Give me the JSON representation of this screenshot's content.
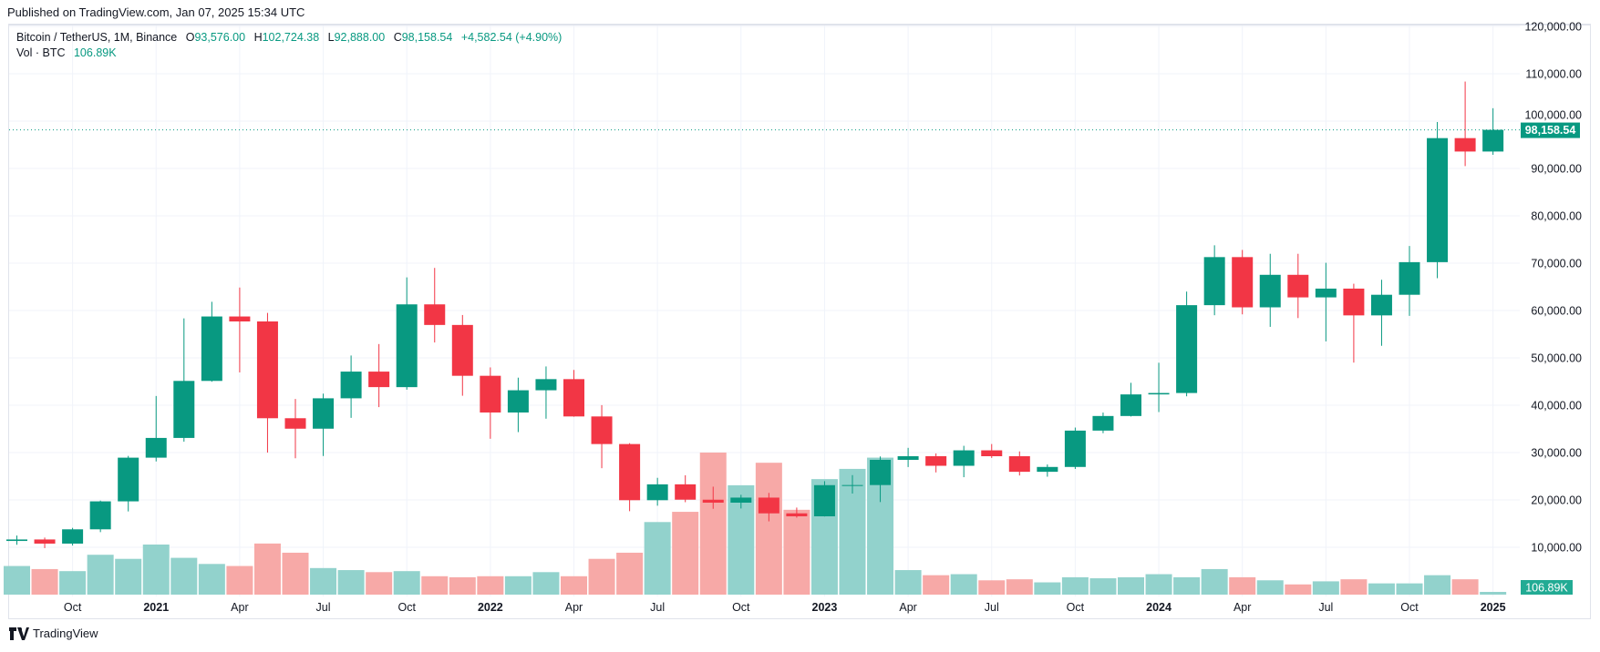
{
  "published": "Published on TradingView.com, Jan 07, 2025 15:34 UTC",
  "legend": {
    "symbol": "Bitcoin / TetherUS, 1M, Binance",
    "open_label": "O",
    "open": "93,576.00",
    "high_label": "H",
    "high": "102,724.38",
    "low_label": "L",
    "low": "92,888.00",
    "close_label": "C",
    "close": "98,158.54",
    "change": "+4,582.54 (+4.90%)",
    "vol_label": "Vol · BTC",
    "vol_value": "106.89K"
  },
  "footer": {
    "brand": "TradingView",
    "logo_icon": "tradingview-logo-icon"
  },
  "colors": {
    "up": "#089981",
    "down": "#f23645",
    "vol_up": "#92d2cc",
    "vol_down": "#f7a9a7",
    "grid": "#f0f3fa"
  },
  "chart_data": {
    "type": "candlestick",
    "interval": "1M",
    "y_axis": {
      "range": [
        0,
        120000
      ],
      "position": "right",
      "ticks": [
        "10,000.00",
        "20,000.00",
        "30,000.00",
        "40,000.00",
        "50,000.00",
        "60,000.00",
        "70,000.00",
        "80,000.00",
        "90,000.00",
        "100,000.00",
        "110,000.00",
        "120,000.00"
      ],
      "tick_values": [
        10000,
        20000,
        30000,
        40000,
        50000,
        60000,
        70000,
        80000,
        90000,
        100000,
        110000,
        120000
      ]
    },
    "x_axis": {
      "tick_labels": [
        "Oct",
        "2021",
        "Apr",
        "Jul",
        "Oct",
        "2022",
        "Apr",
        "Jul",
        "Oct",
        "2023",
        "Apr",
        "Jul",
        "Oct",
        "2024",
        "Apr",
        "Jul",
        "Oct",
        "2025"
      ],
      "tick_months": [
        "2020-10",
        "2021-01",
        "2021-04",
        "2021-07",
        "2021-10",
        "2022-01",
        "2022-04",
        "2022-07",
        "2022-10",
        "2023-01",
        "2023-04",
        "2023-07",
        "2023-10",
        "2024-01",
        "2024-04",
        "2024-07",
        "2024-10",
        "2025-01"
      ]
    },
    "grid": true,
    "last_price": {
      "value": 98158.54,
      "label": "98,158.54"
    },
    "last_volume_label": "106.89K",
    "months": [
      "2020-08",
      "2020-09",
      "2020-10",
      "2020-11",
      "2020-12",
      "2021-01",
      "2021-02",
      "2021-03",
      "2021-04",
      "2021-05",
      "2021-06",
      "2021-07",
      "2021-08",
      "2021-09",
      "2021-10",
      "2021-11",
      "2021-12",
      "2022-01",
      "2022-02",
      "2022-03",
      "2022-04",
      "2022-05",
      "2022-06",
      "2022-07",
      "2022-08",
      "2022-09",
      "2022-10",
      "2022-11",
      "2022-12",
      "2023-01",
      "2023-02",
      "2023-03",
      "2023-04",
      "2023-05",
      "2023-06",
      "2023-07",
      "2023-08",
      "2023-09",
      "2023-10",
      "2023-11",
      "2023-12",
      "2024-01",
      "2024-02",
      "2024-03",
      "2024-04",
      "2024-05",
      "2024-06",
      "2024-07",
      "2024-08",
      "2024-09",
      "2024-10",
      "2024-11",
      "2024-12",
      "2025-01"
    ],
    "ohlc": [
      [
        11335,
        12468,
        10518,
        11649
      ],
      [
        11649,
        12050,
        9825,
        10776
      ],
      [
        10776,
        14100,
        10374,
        13791
      ],
      [
        13791,
        19863,
        13195,
        19700
      ],
      [
        19700,
        29300,
        17572,
        28923
      ],
      [
        28923,
        41950,
        28130,
        33092
      ],
      [
        33092,
        58352,
        32296,
        45135
      ],
      [
        45135,
        61844,
        44961,
        58740
      ],
      [
        58740,
        64854,
        46930,
        57694
      ],
      [
        57694,
        59500,
        30000,
        37253
      ],
      [
        37254,
        41330,
        28805,
        35045
      ],
      [
        35045,
        42448,
        29278,
        41461
      ],
      [
        41461,
        50500,
        37332,
        47100
      ],
      [
        47100,
        52920,
        39600,
        43824
      ],
      [
        43820,
        67000,
        43283,
        61299
      ],
      [
        61300,
        69000,
        53256,
        56950
      ],
      [
        56950,
        59053,
        42000,
        46216
      ],
      [
        46216,
        47990,
        32917,
        38466
      ],
      [
        38466,
        45821,
        34322,
        43160
      ],
      [
        43160,
        48189,
        37155,
        45510
      ],
      [
        45510,
        47444,
        37578,
        37630
      ],
      [
        37630,
        40023,
        26700,
        31801
      ],
      [
        31801,
        31982,
        17622,
        19942
      ],
      [
        19942,
        24668,
        18781,
        23293
      ],
      [
        23296,
        25211,
        19520,
        20050
      ],
      [
        20048,
        22799,
        18125,
        19422
      ],
      [
        19423,
        21085,
        18190,
        20490
      ],
      [
        20490,
        21480,
        15476,
        17164
      ],
      [
        17165,
        18387,
        16256,
        16542
      ],
      [
        16542,
        23960,
        16500,
        23125
      ],
      [
        23125,
        25250,
        21351,
        23141
      ],
      [
        23141,
        29184,
        19549,
        28465
      ],
      [
        28465,
        31000,
        26942,
        29233
      ],
      [
        29233,
        29820,
        25811,
        27210
      ],
      [
        27210,
        31431,
        24800,
        30472
      ],
      [
        30472,
        31804,
        28861,
        29232
      ],
      [
        29232,
        30245,
        25166,
        25940
      ],
      [
        25940,
        27488,
        24901,
        26962
      ],
      [
        26962,
        35280,
        26538,
        34639
      ],
      [
        34640,
        38450,
        34097,
        37723
      ],
      [
        37723,
        44729,
        37615,
        42283
      ],
      [
        42284,
        48970,
        38555,
        42580
      ],
      [
        42580,
        64000,
        41884,
        61130
      ],
      [
        61131,
        73777,
        59005,
        71280
      ],
      [
        71280,
        72797,
        59191,
        60672
      ],
      [
        60672,
        71979,
        56552,
        67540
      ],
      [
        67540,
        71980,
        58402,
        62772
      ],
      [
        62773,
        70080,
        53485,
        64628
      ],
      [
        64628,
        65660,
        49000,
        58973
      ],
      [
        58974,
        66498,
        52550,
        63327
      ],
      [
        63327,
        73620,
        58867,
        70215
      ],
      [
        70216,
        99800,
        66835,
        96408
      ],
      [
        96408,
        108353,
        90500,
        93576
      ],
      [
        93576,
        102724.38,
        92888,
        98158.54
      ]
    ],
    "volume_k": [
      1120,
      1000,
      920,
      1560,
      1400,
      1960,
      1440,
      1200,
      1120,
      2000,
      1640,
      1040,
      960,
      880,
      920,
      720,
      680,
      720,
      720,
      880,
      720,
      1400,
      1640,
      2840,
      3240,
      5560,
      4280,
      5160,
      3320,
      4520,
      4920,
      5360,
      960,
      760,
      800,
      560,
      600,
      480,
      680,
      640,
      680,
      800,
      680,
      1000,
      680,
      560,
      400,
      520,
      600,
      440,
      440,
      760,
      600,
      106.89
    ]
  }
}
